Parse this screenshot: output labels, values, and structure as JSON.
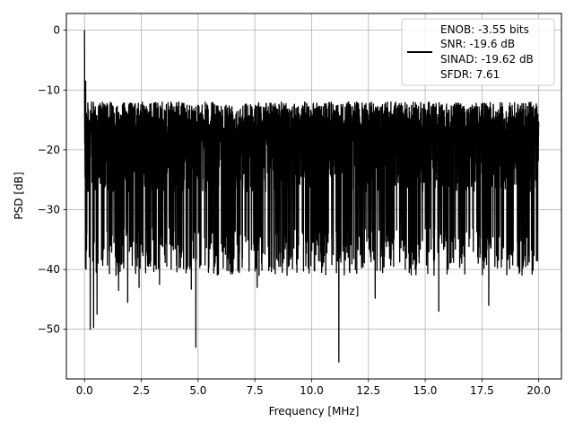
{
  "chart_data": {
    "type": "line",
    "title": "",
    "xlabel": "Frequency [MHz]",
    "ylabel": "PSD [dB]",
    "xlim": [
      -0.8,
      21.0
    ],
    "ylim": [
      -58.3,
      2.8
    ],
    "xticks": [
      0.0,
      2.5,
      5.0,
      7.5,
      10.0,
      12.5,
      15.0,
      17.5,
      20.0
    ],
    "xtick_labels": [
      "0.0",
      "2.5",
      "5.0",
      "7.5",
      "10.0",
      "12.5",
      "15.0",
      "17.5",
      "20.0"
    ],
    "yticks": [
      0,
      -10,
      -20,
      -30,
      -40,
      -50
    ],
    "ytick_labels": [
      "0",
      "−10",
      "−20",
      "−30",
      "−40",
      "−50"
    ],
    "grid": true,
    "legend_position": "top-right",
    "legend_lines": [
      "ENOB: -3.55 bits",
      "SNR: -19.6 dB",
      "SINAD: -19.62 dB",
      "SFDR: 7.61"
    ],
    "series": [
      {
        "color": "#000000",
        "x_start": 0.0,
        "x_end": 20.0,
        "noise_band": [
          -33,
          -12
        ],
        "median": -21,
        "peaks": [
          {
            "x": 0.0,
            "y": 0.0
          },
          {
            "x": 0.05,
            "y": -8.5
          },
          {
            "x": 0.1,
            "y": -34.0
          },
          {
            "x": 0.25,
            "y": -50.0
          },
          {
            "x": 0.4,
            "y": -49.7
          },
          {
            "x": 0.55,
            "y": -47.5
          },
          {
            "x": 1.5,
            "y": -43.5
          },
          {
            "x": 1.9,
            "y": -45.5
          },
          {
            "x": 2.4,
            "y": -43.0
          },
          {
            "x": 3.3,
            "y": -42.5
          },
          {
            "x": 4.7,
            "y": -43.3
          },
          {
            "x": 4.9,
            "y": -53.0
          },
          {
            "x": 7.6,
            "y": -43.0
          },
          {
            "x": 11.2,
            "y": -55.5
          },
          {
            "x": 12.8,
            "y": -44.8
          },
          {
            "x": 15.6,
            "y": -47.0
          },
          {
            "x": 17.8,
            "y": -46.0
          },
          {
            "x": 19.9,
            "y": -38.5
          }
        ]
      }
    ]
  }
}
